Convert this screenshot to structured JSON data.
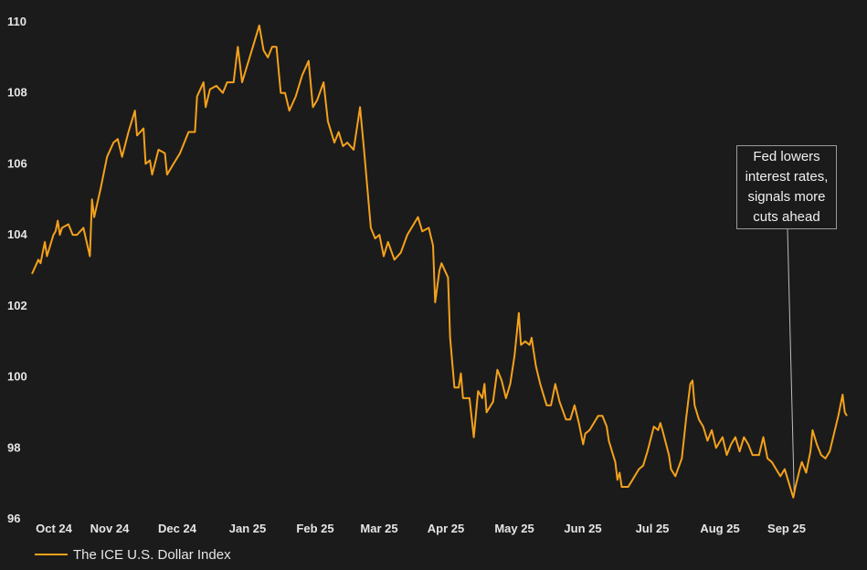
{
  "chart_data": {
    "type": "line",
    "x_tick_labels": [
      "Oct 24",
      "Nov 24",
      "Dec 24",
      "Jan 25",
      "Feb 25",
      "Mar 25",
      "Apr 25",
      "May 25",
      "Jun 25",
      "Jul 25",
      "Aug 25",
      "Sep 25"
    ],
    "y_ticks": [
      96,
      98,
      100,
      102,
      104,
      106,
      108,
      110
    ],
    "ylim": [
      96,
      110
    ],
    "grid": false,
    "legend_position": "bottom-left",
    "annotation": "Fed lowers\ninterest rates,\nsignals more\ncuts ahead",
    "series": [
      {
        "name": "The ICE U.S. Dollar Index",
        "color": "#f4a11c",
        "points": [
          [
            "2024-09-27",
            102.9
          ],
          [
            "2024-09-30",
            103.3
          ],
          [
            "2024-10-01",
            103.2
          ],
          [
            "2024-10-02",
            103.5
          ],
          [
            "2024-10-03",
            103.8
          ],
          [
            "2024-10-04",
            103.4
          ],
          [
            "2024-10-07",
            104.0
          ],
          [
            "2024-10-08",
            104.1
          ],
          [
            "2024-10-09",
            104.4
          ],
          [
            "2024-10-10",
            104.0
          ],
          [
            "2024-10-11",
            104.2
          ],
          [
            "2024-10-14",
            104.3
          ],
          [
            "2024-10-16",
            104.0
          ],
          [
            "2024-10-18",
            104.0
          ],
          [
            "2024-10-21",
            104.2
          ],
          [
            "2024-10-24",
            103.4
          ],
          [
            "2024-10-25",
            105.0
          ],
          [
            "2024-10-26",
            104.5
          ],
          [
            "2024-10-29",
            105.3
          ],
          [
            "2024-11-01",
            106.2
          ],
          [
            "2024-11-04",
            106.6
          ],
          [
            "2024-11-06",
            106.7
          ],
          [
            "2024-11-08",
            106.2
          ],
          [
            "2024-11-11",
            106.9
          ],
          [
            "2024-11-14",
            107.5
          ],
          [
            "2024-11-15",
            106.8
          ],
          [
            "2024-11-18",
            107.0
          ],
          [
            "2024-11-19",
            106.0
          ],
          [
            "2024-11-21",
            106.1
          ],
          [
            "2024-11-22",
            105.7
          ],
          [
            "2024-11-25",
            106.4
          ],
          [
            "2024-11-28",
            106.3
          ],
          [
            "2024-11-29",
            105.7
          ],
          [
            "2024-12-02",
            106.0
          ],
          [
            "2024-12-05",
            106.3
          ],
          [
            "2024-12-09",
            106.9
          ],
          [
            "2024-12-12",
            106.9
          ],
          [
            "2024-12-13",
            107.9
          ],
          [
            "2024-12-16",
            108.3
          ],
          [
            "2024-12-17",
            107.6
          ],
          [
            "2024-12-19",
            108.1
          ],
          [
            "2024-12-22",
            108.2
          ],
          [
            "2024-12-25",
            108.0
          ],
          [
            "2024-12-27",
            108.3
          ],
          [
            "2024-12-30",
            108.3
          ],
          [
            "2025-01-01",
            109.3
          ],
          [
            "2025-01-02",
            108.8
          ],
          [
            "2025-01-03",
            108.3
          ],
          [
            "2025-01-06",
            108.9
          ],
          [
            "2025-01-08",
            109.3
          ],
          [
            "2025-01-11",
            109.9
          ],
          [
            "2025-01-13",
            109.2
          ],
          [
            "2025-01-15",
            109.0
          ],
          [
            "2025-01-17",
            109.3
          ],
          [
            "2025-01-19",
            109.3
          ],
          [
            "2025-01-21",
            108.0
          ],
          [
            "2025-01-23",
            108.0
          ],
          [
            "2025-01-25",
            107.5
          ],
          [
            "2025-01-28",
            107.9
          ],
          [
            "2025-01-31",
            108.5
          ],
          [
            "2025-02-03",
            108.9
          ],
          [
            "2025-02-05",
            107.6
          ],
          [
            "2025-02-07",
            107.8
          ],
          [
            "2025-02-10",
            108.3
          ],
          [
            "2025-02-12",
            107.2
          ],
          [
            "2025-02-15",
            106.6
          ],
          [
            "2025-02-17",
            106.9
          ],
          [
            "2025-02-19",
            106.5
          ],
          [
            "2025-02-21",
            106.6
          ],
          [
            "2025-02-24",
            106.4
          ],
          [
            "2025-02-27",
            107.6
          ],
          [
            "2025-03-01",
            106.3
          ],
          [
            "2025-03-04",
            104.2
          ],
          [
            "2025-03-06",
            103.9
          ],
          [
            "2025-03-08",
            104.0
          ],
          [
            "2025-03-10",
            103.4
          ],
          [
            "2025-03-12",
            103.8
          ],
          [
            "2025-03-15",
            103.3
          ],
          [
            "2025-03-18",
            103.5
          ],
          [
            "2025-03-21",
            104.0
          ],
          [
            "2025-03-24",
            104.3
          ],
          [
            "2025-03-26",
            104.5
          ],
          [
            "2025-03-28",
            104.1
          ],
          [
            "2025-03-31",
            104.2
          ],
          [
            "2025-04-02",
            103.7
          ],
          [
            "2025-04-03",
            102.1
          ],
          [
            "2025-04-05",
            103.0
          ],
          [
            "2025-04-06",
            103.2
          ],
          [
            "2025-04-09",
            102.8
          ],
          [
            "2025-04-10",
            101.1
          ],
          [
            "2025-04-12",
            99.7
          ],
          [
            "2025-04-14",
            99.7
          ],
          [
            "2025-04-15",
            100.1
          ],
          [
            "2025-04-16",
            99.4
          ],
          [
            "2025-04-19",
            99.4
          ],
          [
            "2025-04-21",
            98.3
          ],
          [
            "2025-04-23",
            99.6
          ],
          [
            "2025-04-25",
            99.4
          ],
          [
            "2025-04-26",
            99.8
          ],
          [
            "2025-04-27",
            99.0
          ],
          [
            "2025-04-30",
            99.3
          ],
          [
            "2025-05-02",
            100.2
          ],
          [
            "2025-05-04",
            99.9
          ],
          [
            "2025-05-06",
            99.4
          ],
          [
            "2025-05-08",
            99.8
          ],
          [
            "2025-05-10",
            100.6
          ],
          [
            "2025-05-12",
            101.8
          ],
          [
            "2025-05-13",
            100.9
          ],
          [
            "2025-05-15",
            101.0
          ],
          [
            "2025-05-17",
            100.9
          ],
          [
            "2025-05-18",
            101.1
          ],
          [
            "2025-05-20",
            100.3
          ],
          [
            "2025-05-22",
            99.8
          ],
          [
            "2025-05-24",
            99.4
          ],
          [
            "2025-05-25",
            99.2
          ],
          [
            "2025-05-27",
            99.2
          ],
          [
            "2025-05-29",
            99.8
          ],
          [
            "2025-05-31",
            99.3
          ],
          [
            "2025-06-03",
            98.8
          ],
          [
            "2025-06-05",
            98.8
          ],
          [
            "2025-06-07",
            99.2
          ],
          [
            "2025-06-09",
            98.7
          ],
          [
            "2025-06-11",
            98.1
          ],
          [
            "2025-06-12",
            98.4
          ],
          [
            "2025-06-14",
            98.5
          ],
          [
            "2025-06-16",
            98.7
          ],
          [
            "2025-06-18",
            98.9
          ],
          [
            "2025-06-20",
            98.9
          ],
          [
            "2025-06-22",
            98.6
          ],
          [
            "2025-06-23",
            98.2
          ],
          [
            "2025-06-25",
            97.8
          ],
          [
            "2025-06-26",
            97.6
          ],
          [
            "2025-06-27",
            97.1
          ],
          [
            "2025-06-28",
            97.3
          ],
          [
            "2025-06-29",
            96.9
          ],
          [
            "2025-07-02",
            96.9
          ],
          [
            "2025-07-04",
            97.1
          ],
          [
            "2025-07-07",
            97.4
          ],
          [
            "2025-07-09",
            97.5
          ],
          [
            "2025-07-11",
            97.9
          ],
          [
            "2025-07-14",
            98.6
          ],
          [
            "2025-07-16",
            98.5
          ],
          [
            "2025-07-17",
            98.7
          ],
          [
            "2025-07-18",
            98.5
          ],
          [
            "2025-07-21",
            97.8
          ],
          [
            "2025-07-22",
            97.4
          ],
          [
            "2025-07-24",
            97.2
          ],
          [
            "2025-07-27",
            97.7
          ],
          [
            "2025-07-29",
            98.8
          ],
          [
            "2025-07-31",
            99.8
          ],
          [
            "2025-08-01",
            99.9
          ],
          [
            "2025-08-02",
            99.2
          ],
          [
            "2025-08-04",
            98.8
          ],
          [
            "2025-08-06",
            98.6
          ],
          [
            "2025-08-08",
            98.2
          ],
          [
            "2025-08-10",
            98.5
          ],
          [
            "2025-08-12",
            98.0
          ],
          [
            "2025-08-14",
            98.2
          ],
          [
            "2025-08-15",
            98.3
          ],
          [
            "2025-08-17",
            97.8
          ],
          [
            "2025-08-19",
            98.1
          ],
          [
            "2025-08-21",
            98.3
          ],
          [
            "2025-08-23",
            97.9
          ],
          [
            "2025-08-25",
            98.3
          ],
          [
            "2025-08-27",
            98.1
          ],
          [
            "2025-08-29",
            97.8
          ],
          [
            "2025-09-01",
            97.8
          ],
          [
            "2025-09-03",
            98.3
          ],
          [
            "2025-09-05",
            97.7
          ],
          [
            "2025-09-07",
            97.6
          ],
          [
            "2025-09-09",
            97.4
          ],
          [
            "2025-09-11",
            97.2
          ],
          [
            "2025-09-13",
            97.4
          ],
          [
            "2025-09-15",
            97.0
          ],
          [
            "2025-09-17",
            96.6
          ],
          [
            "2025-09-18",
            96.9
          ],
          [
            "2025-09-20",
            97.4
          ],
          [
            "2025-09-21",
            97.6
          ],
          [
            "2025-09-23",
            97.3
          ],
          [
            "2025-09-25",
            97.9
          ],
          [
            "2025-09-26",
            98.5
          ],
          [
            "2025-09-28",
            98.1
          ],
          [
            "2025-09-30",
            97.8
          ],
          [
            "2025-10-02",
            97.7
          ],
          [
            "2025-10-04",
            97.9
          ],
          [
            "2025-10-06",
            98.4
          ],
          [
            "2025-10-08",
            98.9
          ],
          [
            "2025-10-10",
            99.5
          ],
          [
            "2025-10-11",
            99.0
          ],
          [
            "2025-10-12",
            98.9
          ]
        ]
      }
    ],
    "annotation_point": [
      "2025-09-17",
      96.6
    ]
  }
}
